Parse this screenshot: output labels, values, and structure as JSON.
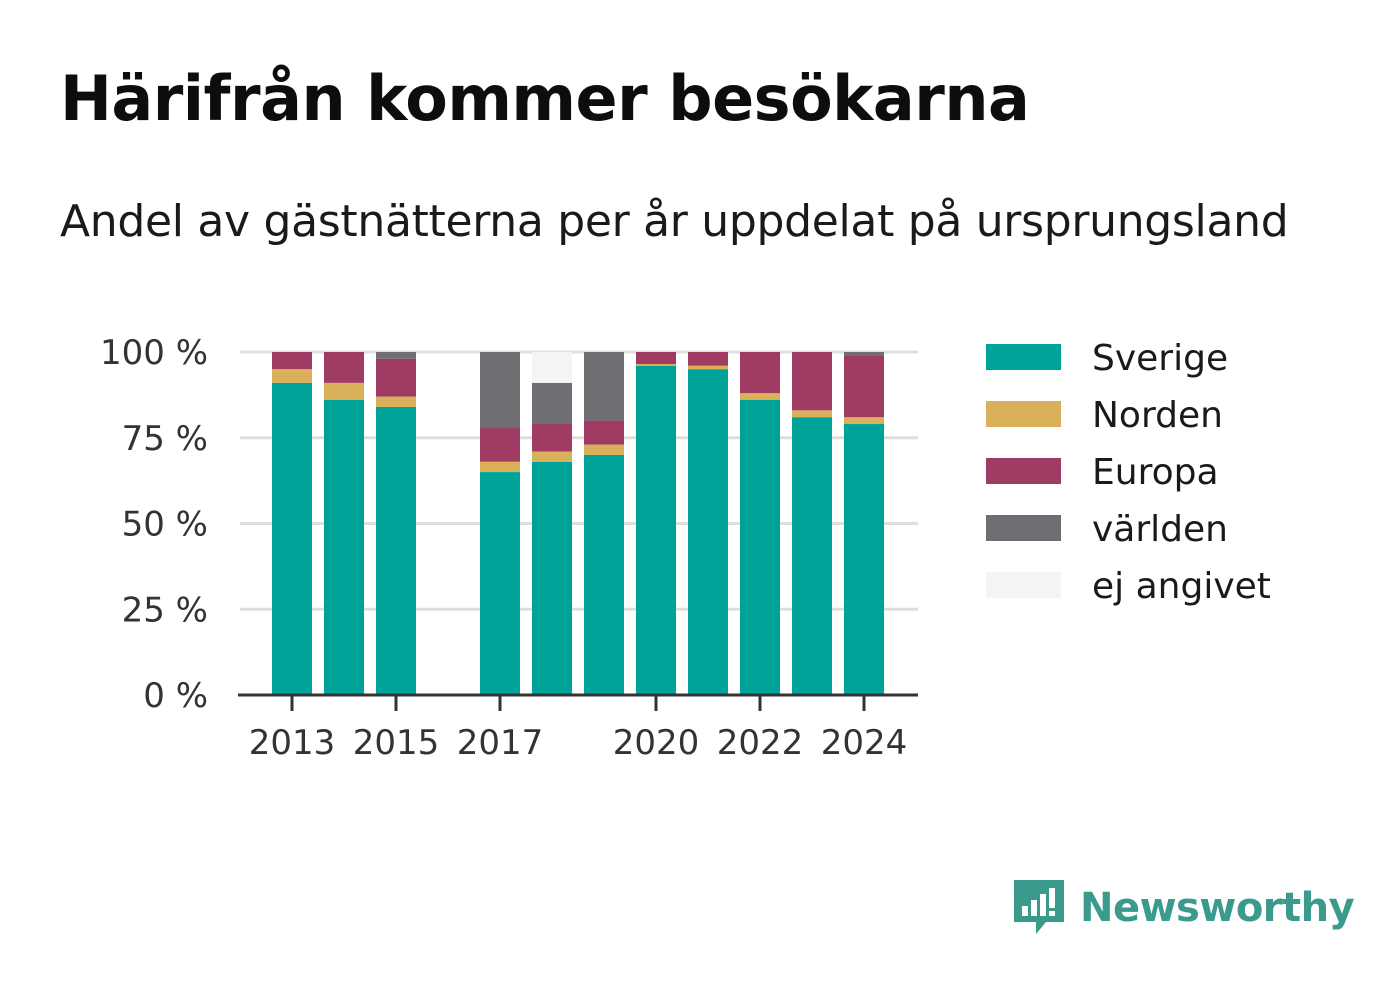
{
  "title": "Härifrån kommer besökarna",
  "subtitle": "Andel av gästnätterna per år uppdelat på ursprungsland",
  "brand": {
    "name": "Newsworthy",
    "icon": "newsworthy-logo-icon",
    "color": "#3a9a8c"
  },
  "chart_data": {
    "type": "bar",
    "stacked": true,
    "title": "",
    "xlabel": "",
    "ylabel": "",
    "ylim": [
      0,
      100
    ],
    "yticks": [
      "0 %",
      "25 %",
      "50 %",
      "75 %",
      "100 %"
    ],
    "xtick_labels": [
      "2013",
      "2015",
      "2017",
      "2020",
      "2022",
      "2024"
    ],
    "grid": true,
    "legend_position": "right",
    "categories": [
      2013,
      2014,
      2015,
      2016,
      2017,
      2018,
      2019,
      2020,
      2021,
      2022,
      2023,
      2024
    ],
    "series": [
      {
        "name": "Sverige",
        "color": "#00a398",
        "values": [
          91,
          86,
          84,
          null,
          65,
          68,
          70,
          96,
          95,
          86,
          81,
          79
        ]
      },
      {
        "name": "Norden",
        "color": "#dab05a",
        "values": [
          4,
          5,
          3,
          null,
          3,
          3,
          3,
          0.5,
          1,
          2,
          2,
          2
        ]
      },
      {
        "name": "Europa",
        "color": "#a03c64",
        "values": [
          5,
          9,
          11,
          null,
          10,
          8,
          7,
          3.5,
          4,
          12,
          17,
          18
        ]
      },
      {
        "name": "världen",
        "color": "#6e6e73",
        "values": [
          0,
          0,
          2,
          null,
          22,
          12,
          20,
          0,
          0,
          0,
          0,
          1
        ]
      },
      {
        "name": "ej angivet",
        "color": "#f5f3f4",
        "values": [
          0,
          0,
          0,
          null,
          0,
          9,
          0,
          0,
          0,
          0,
          0,
          0
        ]
      }
    ]
  }
}
